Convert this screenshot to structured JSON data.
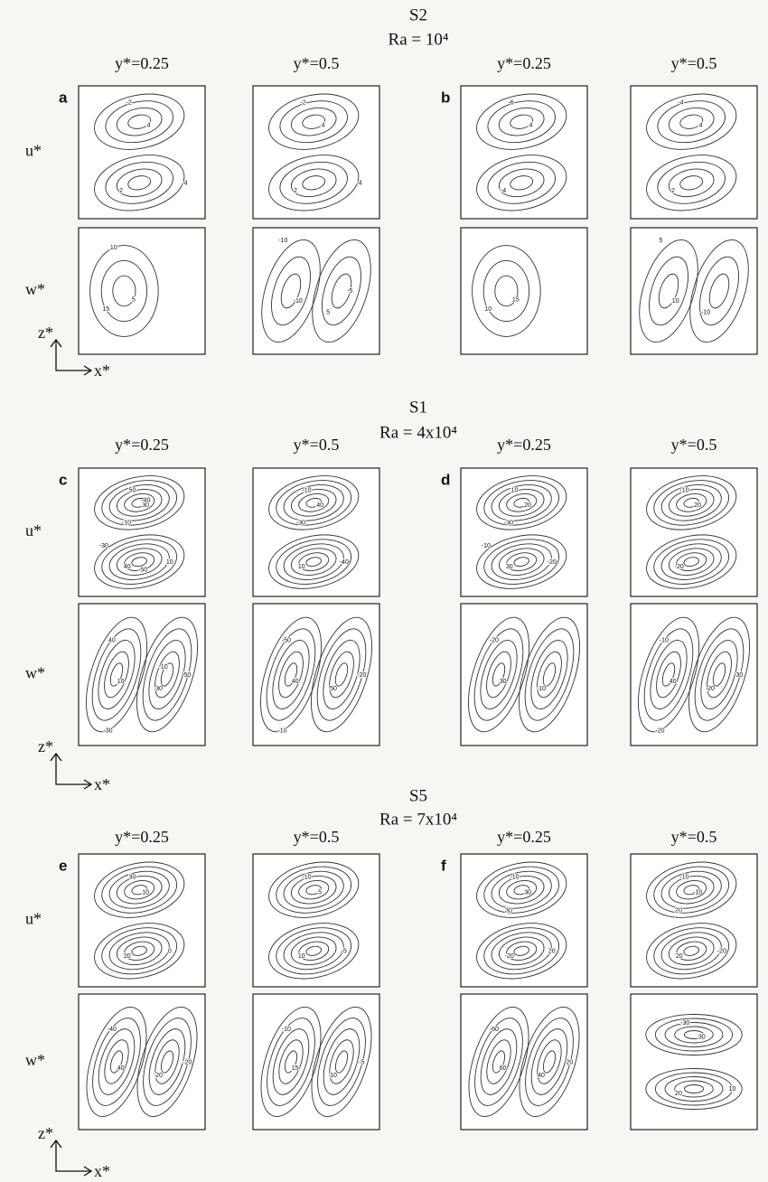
{
  "sections": [
    {
      "title": "S2",
      "subtitle": "Ra = 10⁴",
      "row_labels": [
        "u*",
        "w*"
      ],
      "axis_labels": [
        "z*",
        "x*"
      ],
      "groups": [
        {
          "label": "a",
          "columns": [
            {
              "header": "y*=0.25",
              "u_contours": [
                4,
                2,
                -2,
                -4
              ],
              "w_contours": [
                5,
                15,
                10
              ]
            },
            {
              "header": "y*=0.5",
              "u_contours": [
                4,
                2,
                -2,
                -4
              ],
              "w_contours": [
                -10,
                5,
                -10,
                -5
              ]
            }
          ]
        },
        {
          "label": "b",
          "columns": [
            {
              "header": "y*=0.25",
              "u_contours": [
                4,
                -4,
                -6
              ],
              "w_contours": [
                15,
                10
              ]
            },
            {
              "header": "y*=0.5",
              "u_contours": [
                4,
                2,
                -4
              ],
              "w_contours": [
                10,
                -10,
                5
              ]
            }
          ]
        }
      ]
    },
    {
      "title": "S1",
      "subtitle": "Ra = 4x10⁴",
      "row_labels": [
        "u*",
        "w*"
      ],
      "axis_labels": [
        "z*",
        "x*"
      ],
      "groups": [
        {
          "label": "c",
          "columns": [
            {
              "header": "y*=0.25",
              "u_contours": [
                30,
                40,
                50,
                10,
                -10,
                -30,
                -40,
                -50
              ],
              "w_contours": [
                10,
                30,
                40,
                50,
                -30,
                -10
              ]
            },
            {
              "header": "y*=0.5",
              "u_contours": [
                40,
                10,
                -10,
                -40,
                -30
              ],
              "w_contours": [
                40,
                50,
                -50,
                -20,
                -10
              ]
            }
          ]
        },
        {
          "label": "d",
          "columns": [
            {
              "header": "y*=0.25",
              "u_contours": [
                20,
                30,
                10,
                -20,
                -30,
                -10
              ],
              "w_contours": [
                30,
                -10,
                -20
              ]
            },
            {
              "header": "y*=0.5",
              "u_contours": [
                20,
                -20,
                -10
              ],
              "w_contours": [
                40,
                20,
                -10,
                30,
                -20
              ]
            }
          ]
        }
      ]
    },
    {
      "title": "S5",
      "subtitle": "Ra = 7x10⁴",
      "row_labels": [
        "u*",
        "w*"
      ],
      "axis_labels": [
        "z*",
        "x*"
      ],
      "groups": [
        {
          "label": "e",
          "columns": [
            {
              "header": "y*=0.25",
              "u_contours": [
                10,
                20,
                30,
                0
              ],
              "w_contours": [
                40,
                20,
                -40,
                -20
              ]
            },
            {
              "header": "y*=0.5",
              "u_contours": [
                5,
                10,
                -10,
                -5
              ],
              "w_contours": [
                15,
                10,
                -10,
                -5
              ]
            }
          ]
        },
        {
          "label": "f",
          "columns": [
            {
              "header": "y*=0.25",
              "u_contours": [
                30,
                -20,
                -10,
                20,
                30
              ],
              "w_contours": [
                60,
                40,
                -60,
                20
              ]
            },
            {
              "header": "y*=0.5",
              "u_contours": [
                -10,
                20,
                -10,
                -20,
                20
              ],
              "w_contours": [
                30,
                20,
                -30,
                10
              ]
            }
          ]
        }
      ]
    }
  ]
}
